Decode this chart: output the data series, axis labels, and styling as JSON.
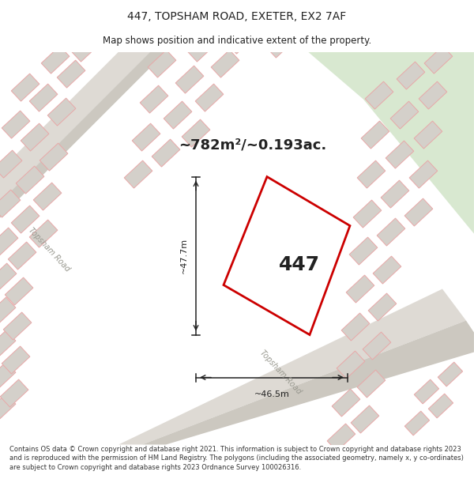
{
  "title": "447, TOPSHAM ROAD, EXETER, EX2 7AF",
  "subtitle": "Map shows position and indicative extent of the property.",
  "footer": "Contains OS data © Crown copyright and database right 2021. This information is subject to Crown copyright and database rights 2023 and is reproduced with the permission of HM Land Registry. The polygons (including the associated geometry, namely x, y co-ordinates) are subject to Crown copyright and database rights 2023 Ordnance Survey 100026316.",
  "area_label": "~782m²/~0.193ac.",
  "width_label": "~46.5m",
  "height_label": "~47.7m",
  "plot_number": "447",
  "map_bg": "#eeece8",
  "green_area": "#d8e8d0",
  "building_fill": "#d4d0ca",
  "building_edge": "#e8a8a8",
  "road_fill": "#e0dcd6",
  "red_plot": "#cc0000",
  "text_color": "#222222",
  "road_text": "#999990",
  "footer_color": "#333333",
  "title_fontsize": 10,
  "subtitle_fontsize": 8.5,
  "area_fontsize": 13,
  "dim_fontsize": 8,
  "plot_fontsize": 18,
  "footer_fontsize": 6.0
}
